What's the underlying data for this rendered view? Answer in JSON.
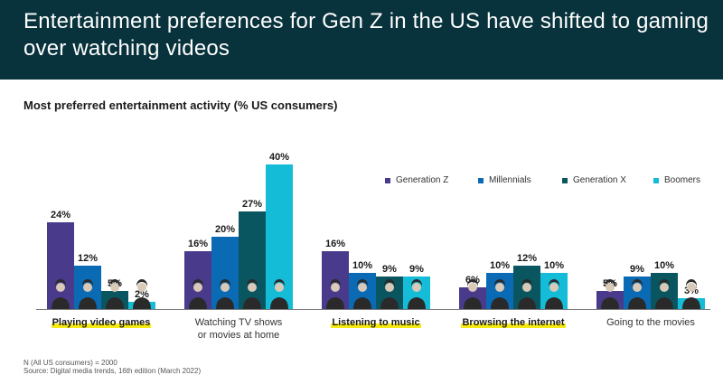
{
  "header": {
    "title_line1": "Entertainment preferences for Gen Z in the US have shifted to gaming",
    "title_line2": "over watching videos"
  },
  "chart_data": {
    "type": "bar",
    "title": "Most preferred entertainment activity (% US consumers)",
    "categories": [
      "Playing video games",
      "Watching TV shows or movies at home",
      "Listening to music",
      "Browsing the internet",
      "Going to the movies"
    ],
    "category_label_lines": [
      [
        "Playing video games"
      ],
      [
        "Watching TV shows",
        "or movies at home"
      ],
      [
        "Listening to music"
      ],
      [
        "Browsing the internet"
      ],
      [
        "Going to the movies"
      ]
    ],
    "highlighted_categories": [
      true,
      false,
      true,
      true,
      false
    ],
    "series": [
      {
        "name": "Generation Z",
        "color": "#4a3a8c",
        "values": [
          24,
          16,
          16,
          6,
          5
        ]
      },
      {
        "name": "Millennials",
        "color": "#0a6ab4",
        "values": [
          12,
          20,
          10,
          10,
          9
        ]
      },
      {
        "name": "Generation X",
        "color": "#0a5660",
        "values": [
          5,
          27,
          9,
          12,
          10
        ]
      },
      {
        "name": "Boomers",
        "color": "#14bcd8",
        "values": [
          2,
          40,
          9,
          10,
          3
        ]
      }
    ],
    "value_suffix": "%",
    "ylim": [
      0,
      40
    ],
    "legend_position": "top-right",
    "grid": false,
    "colors": {
      "highlight": "#f5ea14",
      "banner": "#08323c"
    }
  },
  "footnote": {
    "line1": "N (All US consumers) = 2000",
    "line2": "Source: Digital media trends, 16th edition (March 2022)"
  }
}
